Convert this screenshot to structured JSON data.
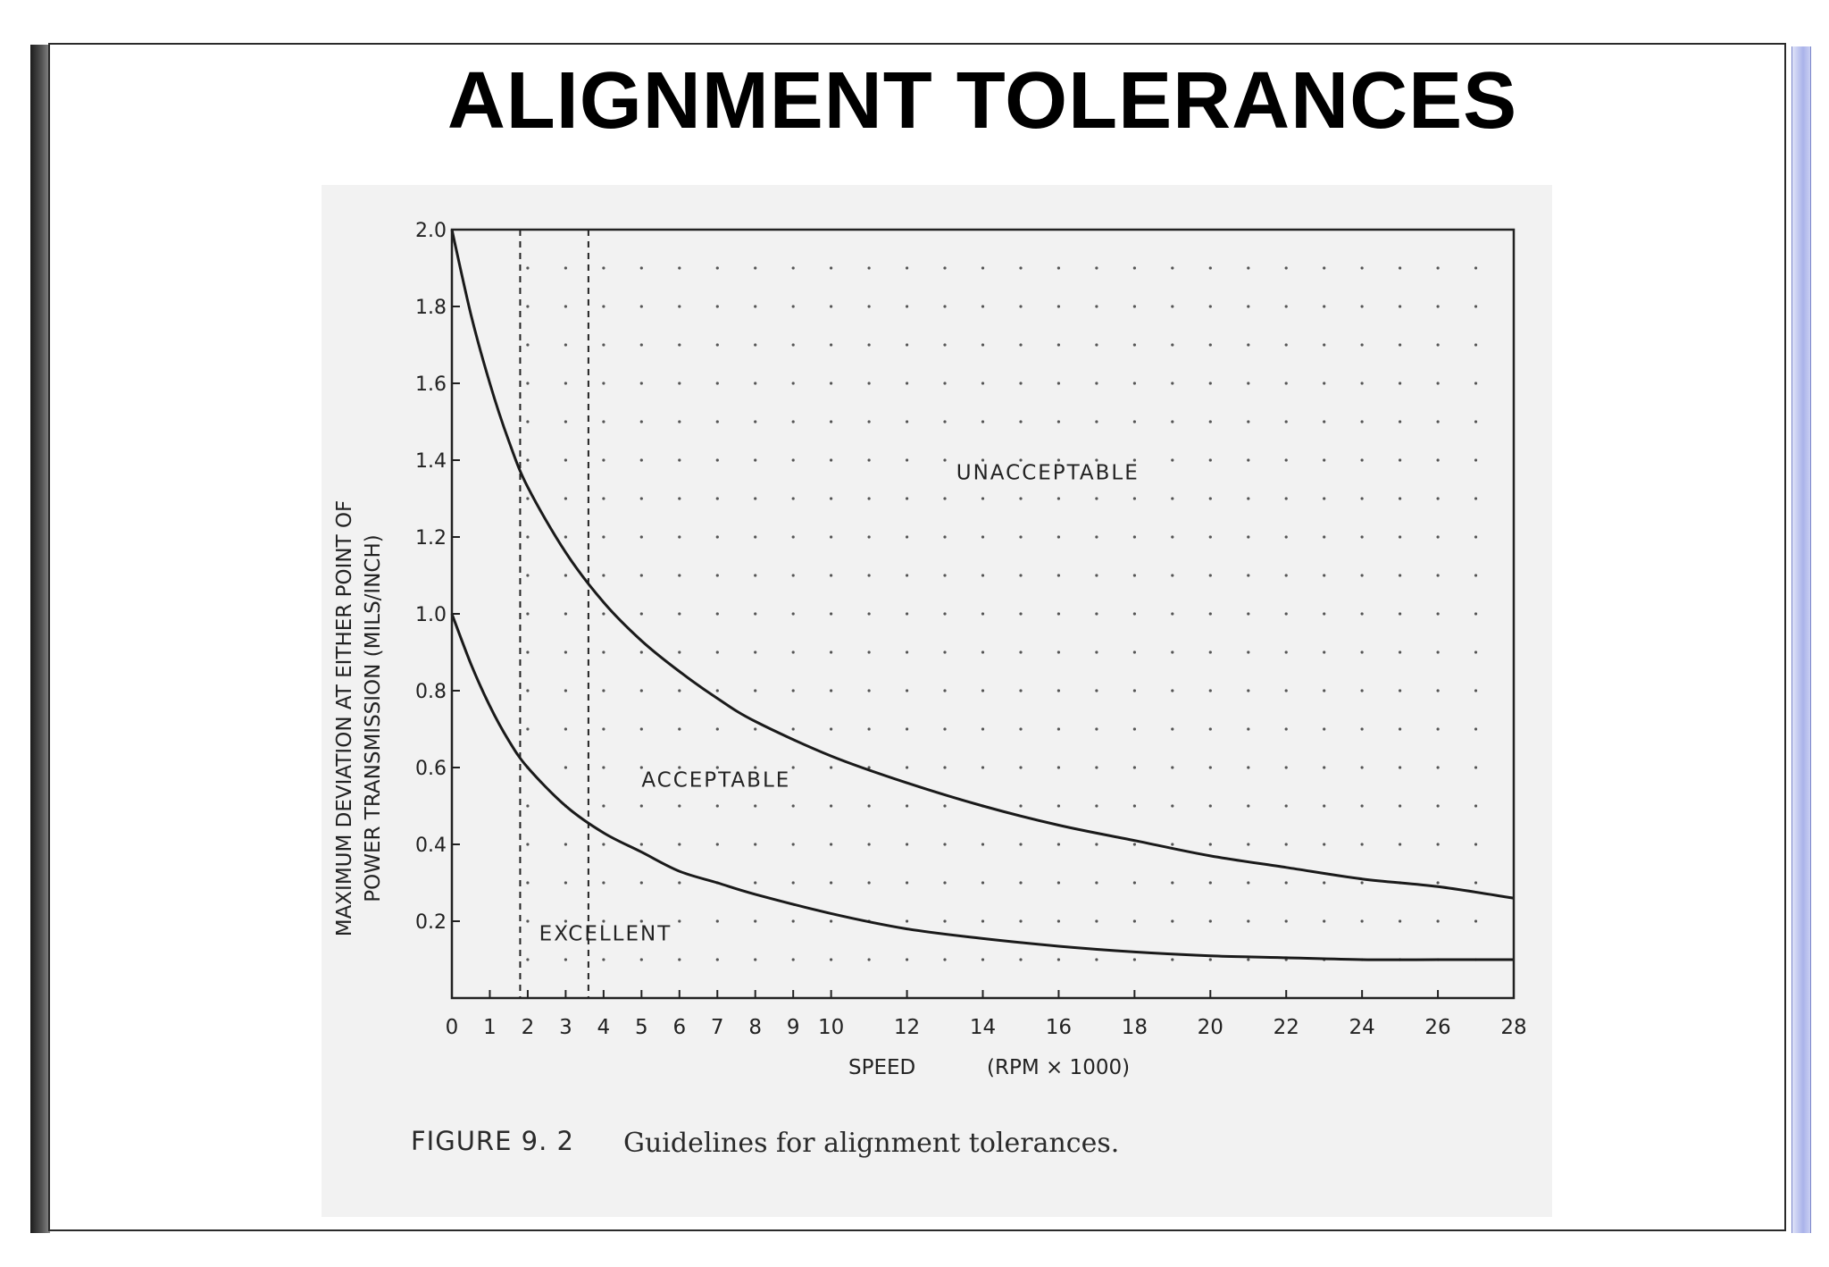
{
  "slide": {
    "title": "ALIGNMENT TOLERANCES"
  },
  "chart_data": {
    "type": "line",
    "title": "",
    "xlabel": "SPEED",
    "xlabel_unit": "(RPM × 1000)",
    "ylabel_line1": "MAXIMUM DEVIATION AT EITHER POINT OF",
    "ylabel_line2": "POWER TRANSMISSION   (MILS/INCH)",
    "xlim": [
      0,
      28
    ],
    "ylim": [
      0,
      2.0
    ],
    "x_ticks": [
      0,
      1,
      2,
      3,
      4,
      5,
      6,
      7,
      8,
      9,
      10,
      12,
      14,
      16,
      18,
      20,
      22,
      24,
      26,
      28
    ],
    "x_tick_labels": [
      "0",
      "1",
      "2",
      "3",
      "4",
      "5",
      "6",
      "7",
      "8",
      "9",
      "10",
      "12",
      "14",
      "16",
      "18",
      "20",
      "22",
      "24",
      "26",
      "28"
    ],
    "y_ticks": [
      0.2,
      0.4,
      0.6,
      0.8,
      1.0,
      1.2,
      1.4,
      1.6,
      1.8,
      2.0
    ],
    "y_tick_labels": [
      "0.2",
      "0.4",
      "0.6",
      "0.8",
      "1.0",
      "1.2",
      "1.4",
      "1.6",
      "1.8",
      "2.0"
    ],
    "grid": "dotted",
    "series": [
      {
        "role": "upper-boundary",
        "x": [
          0,
          0.5,
          1,
          1.5,
          2,
          3,
          4,
          5,
          6,
          7,
          8,
          10,
          12,
          14,
          16,
          18,
          20,
          22,
          24,
          26,
          28
        ],
        "y": [
          2.0,
          1.78,
          1.6,
          1.45,
          1.33,
          1.16,
          1.03,
          0.93,
          0.85,
          0.78,
          0.72,
          0.63,
          0.56,
          0.5,
          0.45,
          0.41,
          0.37,
          0.34,
          0.31,
          0.29,
          0.26
        ]
      },
      {
        "role": "lower-boundary",
        "x": [
          0,
          0.5,
          1,
          1.5,
          2,
          3,
          4,
          5,
          6,
          7,
          8,
          10,
          12,
          14,
          16,
          18,
          20,
          22,
          24,
          26,
          28
        ],
        "y": [
          1.0,
          0.87,
          0.76,
          0.67,
          0.6,
          0.5,
          0.43,
          0.38,
          0.33,
          0.3,
          0.27,
          0.22,
          0.18,
          0.155,
          0.135,
          0.12,
          0.11,
          0.105,
          0.1,
          0.1,
          0.1
        ]
      }
    ],
    "vertical_reference_lines": [
      1.8,
      3.6
    ],
    "region_labels": {
      "unacceptable": "UNACCEPTABLE",
      "acceptable": "ACCEPTABLE",
      "excellent": "EXCELLENT"
    },
    "region_label_positions": {
      "unacceptable": [
        13.3,
        1.35
      ],
      "acceptable": [
        5.0,
        0.55
      ],
      "excellent": [
        2.3,
        0.15
      ]
    },
    "caption": {
      "lead": "FIGURE  9. 2",
      "text": "Guidelines for alignment tolerances."
    }
  }
}
